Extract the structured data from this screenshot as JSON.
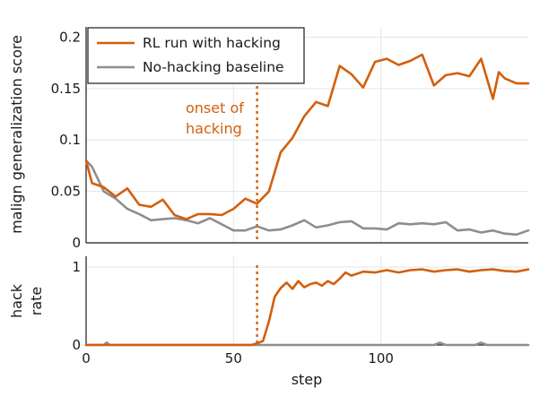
{
  "chart_data": [
    {
      "type": "line",
      "xlabel": "",
      "ylabel": "malign generalization score",
      "xlim": [
        0,
        150
      ],
      "ylim": [
        0,
        0.21
      ],
      "yticks": [
        0,
        0.05,
        0.1,
        0.15,
        0.2
      ],
      "ytick_labels": [
        "0",
        "0.05",
        "0.1",
        "0.15",
        "0.2"
      ],
      "xticks": [
        0,
        50,
        100
      ],
      "grid": true,
      "legend_position": "top-left",
      "series": [
        {
          "name": "RL run with hacking",
          "color": "#d35f0c",
          "x": [
            0,
            2,
            6,
            10,
            14,
            18,
            22,
            26,
            30,
            34,
            38,
            42,
            46,
            50,
            54,
            58,
            62,
            66,
            70,
            74,
            78,
            82,
            86,
            90,
            94,
            98,
            102,
            106,
            110,
            114,
            118,
            122,
            126,
            130,
            134,
            138,
            140,
            142,
            146,
            150
          ],
          "y": [
            0.08,
            0.058,
            0.054,
            0.045,
            0.053,
            0.037,
            0.035,
            0.042,
            0.027,
            0.023,
            0.028,
            0.028,
            0.027,
            0.033,
            0.043,
            0.038,
            0.05,
            0.088,
            0.102,
            0.123,
            0.137,
            0.133,
            0.172,
            0.164,
            0.151,
            0.176,
            0.179,
            0.173,
            0.177,
            0.183,
            0.153,
            0.163,
            0.165,
            0.162,
            0.179,
            0.14,
            0.166,
            0.16,
            0.155,
            0.155
          ]
        },
        {
          "name": "No-hacking baseline",
          "color": "#8e8e8e",
          "x": [
            0,
            2,
            6,
            10,
            14,
            18,
            22,
            26,
            30,
            34,
            38,
            42,
            46,
            50,
            54,
            58,
            62,
            66,
            70,
            74,
            78,
            82,
            86,
            90,
            94,
            98,
            102,
            106,
            110,
            114,
            118,
            122,
            126,
            130,
            134,
            138,
            142,
            146,
            150
          ],
          "y": [
            0.08,
            0.074,
            0.05,
            0.043,
            0.033,
            0.028,
            0.022,
            0.023,
            0.024,
            0.022,
            0.019,
            0.024,
            0.018,
            0.012,
            0.012,
            0.016,
            0.012,
            0.013,
            0.017,
            0.022,
            0.015,
            0.017,
            0.02,
            0.021,
            0.014,
            0.014,
            0.013,
            0.019,
            0.018,
            0.019,
            0.018,
            0.02,
            0.012,
            0.013,
            0.01,
            0.012,
            0.009,
            0.008,
            0.012
          ]
        }
      ],
      "annotations": [
        {
          "text_lines": [
            "onset of",
            "hacking"
          ],
          "x": 58,
          "color": "#d35f0c",
          "style": "dotted vertical line"
        }
      ]
    },
    {
      "type": "line",
      "xlabel": "step",
      "ylabel": "hack rate",
      "ylabel_lines": [
        "hack",
        "rate"
      ],
      "xlim": [
        0,
        150
      ],
      "ylim": [
        0,
        1
      ],
      "yticks": [
        0,
        1
      ],
      "ytick_labels": [
        "0",
        "1"
      ],
      "xticks": [
        0,
        50,
        100
      ],
      "xtick_labels": [
        "0",
        "50",
        "100"
      ],
      "grid": true,
      "series": [
        {
          "name": "RL run with hacking",
          "color": "#d35f0c",
          "x": [
            0,
            56,
            58,
            60,
            62,
            64,
            66,
            68,
            70,
            72,
            74,
            76,
            78,
            80,
            82,
            84,
            86,
            88,
            90,
            94,
            98,
            102,
            106,
            110,
            114,
            118,
            122,
            126,
            130,
            134,
            138,
            142,
            146,
            150
          ],
          "y": [
            0,
            0,
            0.02,
            0.05,
            0.3,
            0.62,
            0.73,
            0.8,
            0.72,
            0.82,
            0.74,
            0.78,
            0.8,
            0.76,
            0.82,
            0.78,
            0.85,
            0.93,
            0.89,
            0.94,
            0.93,
            0.96,
            0.93,
            0.96,
            0.97,
            0.94,
            0.96,
            0.97,
            0.94,
            0.96,
            0.97,
            0.95,
            0.94,
            0.97
          ]
        },
        {
          "name": "No-hacking baseline",
          "color": "#8e8e8e",
          "x": [
            0,
            6,
            7,
            8,
            20,
            118,
            120,
            122,
            132,
            134,
            136,
            150
          ],
          "y": [
            0,
            0,
            0.03,
            0,
            0,
            0,
            0.03,
            0,
            0,
            0.03,
            0,
            0
          ]
        }
      ]
    }
  ]
}
